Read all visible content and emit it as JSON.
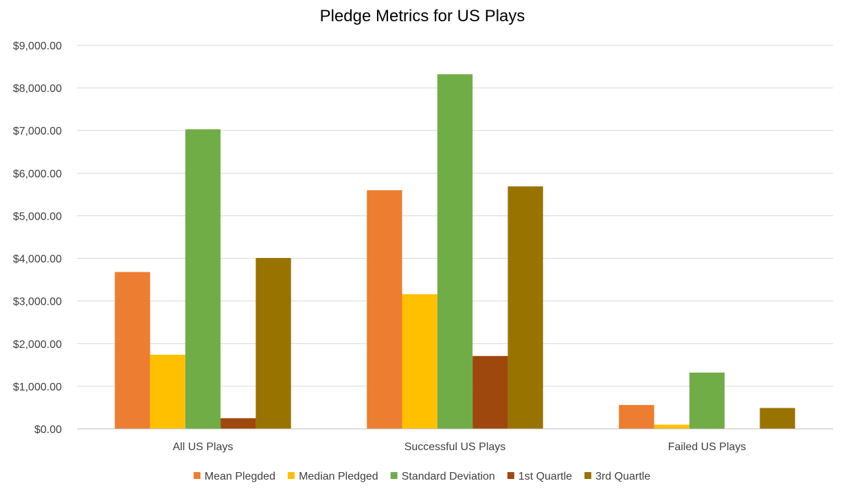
{
  "chart_data": {
    "type": "bar",
    "title": "Pledge Metrics for US Plays",
    "categories": [
      "All US Plays",
      "Successful US Plays",
      "Failed US Plays"
    ],
    "series": [
      {
        "name": "Mean Plegded",
        "color": "#ED7D31",
        "values": [
          3680,
          5600,
          560
        ]
      },
      {
        "name": "Median Pledged",
        "color": "#FFC000",
        "values": [
          1740,
          3160,
          100
        ]
      },
      {
        "name": "Standard Deviation",
        "color": "#70AD47",
        "values": [
          7030,
          8320,
          1320
        ]
      },
      {
        "name": "1st Quartle",
        "color": "#9E480E",
        "values": [
          250,
          1710,
          0
        ]
      },
      {
        "name": "3rd Quartle",
        "color": "#997300",
        "values": [
          4010,
          5690,
          490
        ]
      }
    ],
    "ylim": [
      0,
      9000
    ],
    "yticks": [
      "$0.00",
      "$1,000.00",
      "$2,000.00",
      "$3,000.00",
      "$4,000.00",
      "$5,000.00",
      "$6,000.00",
      "$7,000.00",
      "$8,000.00",
      "$9,000.00"
    ],
    "ytick_values": [
      0,
      1000,
      2000,
      3000,
      4000,
      5000,
      6000,
      7000,
      8000,
      9000
    ],
    "grid": true,
    "legend_position": "bottom"
  }
}
